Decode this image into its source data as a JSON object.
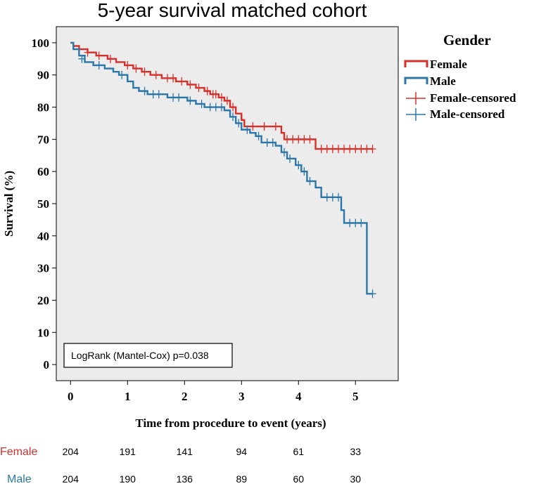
{
  "chart_data": {
    "type": "line",
    "title": "5-year survival matched cohort",
    "xlabel": "Time from procedure to event (years)",
    "ylabel": "Survival (%)",
    "xlim": [
      -0.25,
      5.75
    ],
    "ylim": [
      -5,
      105
    ],
    "xticks": [
      0,
      1,
      2,
      3,
      4,
      5
    ],
    "yticks": [
      0,
      10,
      20,
      30,
      40,
      50,
      60,
      70,
      80,
      90,
      100
    ],
    "legend_title": "Gender",
    "legend_position": "right",
    "annotation": "LogRank (Mantel-Cox) p=0.038",
    "series": [
      {
        "name": "Female",
        "censored_label": "Female-censored",
        "color": "#d7302b",
        "steps": [
          [
            0,
            100
          ],
          [
            0.05,
            99
          ],
          [
            0.15,
            98
          ],
          [
            0.3,
            97
          ],
          [
            0.45,
            96
          ],
          [
            0.65,
            95
          ],
          [
            0.8,
            94
          ],
          [
            0.95,
            93
          ],
          [
            1.1,
            92
          ],
          [
            1.25,
            91
          ],
          [
            1.4,
            90
          ],
          [
            1.6,
            89
          ],
          [
            1.85,
            88
          ],
          [
            2.05,
            87
          ],
          [
            2.2,
            86
          ],
          [
            2.35,
            85
          ],
          [
            2.45,
            84
          ],
          [
            2.6,
            83
          ],
          [
            2.7,
            82
          ],
          [
            2.8,
            80
          ],
          [
            2.9,
            78
          ],
          [
            3.0,
            76
          ],
          [
            3.05,
            74
          ],
          [
            3.7,
            72
          ],
          [
            3.75,
            70
          ],
          [
            4.3,
            67
          ],
          [
            5.3,
            67
          ]
        ],
        "censored": [
          [
            0.3,
            97
          ],
          [
            0.5,
            96
          ],
          [
            0.7,
            95
          ],
          [
            1.0,
            93
          ],
          [
            1.15,
            92
          ],
          [
            1.3,
            91
          ],
          [
            1.5,
            90
          ],
          [
            1.7,
            89
          ],
          [
            1.8,
            89
          ],
          [
            1.95,
            88
          ],
          [
            2.1,
            87
          ],
          [
            2.25,
            86
          ],
          [
            2.4,
            85
          ],
          [
            2.5,
            84
          ],
          [
            2.55,
            84
          ],
          [
            2.65,
            83
          ],
          [
            2.75,
            82
          ],
          [
            2.85,
            80
          ],
          [
            3.2,
            74
          ],
          [
            3.4,
            74
          ],
          [
            3.6,
            74
          ],
          [
            3.8,
            70
          ],
          [
            3.9,
            70
          ],
          [
            4.0,
            70
          ],
          [
            4.1,
            70
          ],
          [
            4.2,
            70
          ],
          [
            4.4,
            67
          ],
          [
            4.5,
            67
          ],
          [
            4.6,
            67
          ],
          [
            4.7,
            67
          ],
          [
            4.8,
            67
          ],
          [
            4.9,
            67
          ],
          [
            5.0,
            67
          ],
          [
            5.1,
            67
          ],
          [
            5.2,
            67
          ],
          [
            5.3,
            67
          ]
        ]
      },
      {
        "name": "Male",
        "censored_label": "Male-censored",
        "color": "#2b77a8",
        "steps": [
          [
            0,
            100
          ],
          [
            0.05,
            98
          ],
          [
            0.15,
            96
          ],
          [
            0.25,
            94
          ],
          [
            0.4,
            93
          ],
          [
            0.6,
            92
          ],
          [
            0.75,
            91
          ],
          [
            0.85,
            90
          ],
          [
            1.0,
            88
          ],
          [
            1.1,
            86
          ],
          [
            1.2,
            85
          ],
          [
            1.35,
            84
          ],
          [
            1.7,
            83
          ],
          [
            2.05,
            82
          ],
          [
            2.2,
            81
          ],
          [
            2.35,
            80
          ],
          [
            2.7,
            79
          ],
          [
            2.8,
            77
          ],
          [
            2.9,
            75
          ],
          [
            3.0,
            73
          ],
          [
            3.15,
            72
          ],
          [
            3.25,
            71
          ],
          [
            3.35,
            69
          ],
          [
            3.6,
            68
          ],
          [
            3.7,
            66
          ],
          [
            3.8,
            64
          ],
          [
            3.95,
            62
          ],
          [
            4.05,
            60
          ],
          [
            4.15,
            57
          ],
          [
            4.3,
            55
          ],
          [
            4.4,
            52
          ],
          [
            4.75,
            48
          ],
          [
            4.8,
            44
          ],
          [
            5.2,
            22
          ],
          [
            5.3,
            22
          ]
        ],
        "censored": [
          [
            0.2,
            95
          ],
          [
            0.5,
            93
          ],
          [
            0.9,
            90
          ],
          [
            1.3,
            85
          ],
          [
            1.45,
            84
          ],
          [
            1.55,
            84
          ],
          [
            1.8,
            83
          ],
          [
            1.9,
            83
          ],
          [
            2.1,
            82
          ],
          [
            2.3,
            81
          ],
          [
            2.45,
            80
          ],
          [
            2.55,
            80
          ],
          [
            2.65,
            80
          ],
          [
            2.85,
            77
          ],
          [
            2.95,
            75
          ],
          [
            3.1,
            73
          ],
          [
            3.3,
            71
          ],
          [
            3.45,
            69
          ],
          [
            3.55,
            69
          ],
          [
            3.75,
            66
          ],
          [
            3.85,
            64
          ],
          [
            4.0,
            62
          ],
          [
            4.1,
            60
          ],
          [
            4.2,
            57
          ],
          [
            4.5,
            52
          ],
          [
            4.6,
            52
          ],
          [
            4.7,
            52
          ],
          [
            4.9,
            44
          ],
          [
            5.0,
            44
          ],
          [
            5.1,
            44
          ],
          [
            5.3,
            22
          ]
        ]
      }
    ],
    "risk_table": {
      "times": [
        0,
        1,
        2,
        3,
        4,
        5
      ],
      "rows": [
        {
          "label": "Female",
          "color": "#d7302b",
          "counts": [
            "204",
            "191",
            "141",
            "94",
            "61",
            "33"
          ]
        },
        {
          "label": "Male",
          "color": "#2b77a8",
          "counts": [
            "204",
            "190",
            "136",
            "89",
            "60",
            "30"
          ]
        }
      ]
    }
  }
}
